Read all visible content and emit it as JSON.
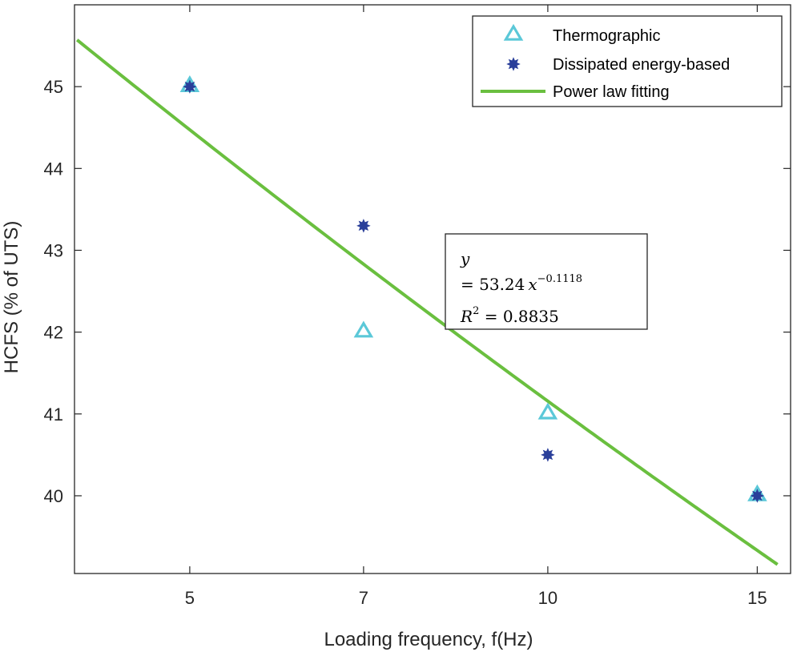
{
  "chart_data": {
    "type": "scatter",
    "title": "",
    "xlabel": "Loading frequency, f(Hz)",
    "ylabel": "HCFS (% of UTS)",
    "xlim": [
      4,
      16
    ],
    "ylim": [
      39.05,
      46
    ],
    "x_scale": "log",
    "xticks": [
      5,
      7,
      10,
      15
    ],
    "yticks": [
      40,
      41,
      42,
      43,
      44,
      45
    ],
    "grid": false,
    "legend_position": "top-right",
    "series": [
      {
        "name": "Thermographic",
        "marker": "triangle",
        "color": "#5bc8d8",
        "points": [
          {
            "x": 5,
            "y": 45.0
          },
          {
            "x": 7,
            "y": 42.0
          },
          {
            "x": 10,
            "y": 41.0
          },
          {
            "x": 15,
            "y": 40.0
          }
        ]
      },
      {
        "name": "Dissipated energy-based",
        "marker": "star",
        "color": "#2a3f9a",
        "points": [
          {
            "x": 5,
            "y": 45.0
          },
          {
            "x": 7,
            "y": 43.3
          },
          {
            "x": 10,
            "y": 40.5
          },
          {
            "x": 15,
            "y": 40.0
          }
        ]
      },
      {
        "name": "Power law fitting",
        "type": "line",
        "color": "#6abf3f",
        "equation": {
          "a": 53.24,
          "b": -0.1118
        },
        "x_range": [
          4.02,
          15.6
        ]
      }
    ],
    "annotation": {
      "line1": "y",
      "line2_prefix": "= 53.24",
      "line2_var": "x",
      "line2_sup": "−0.1118",
      "line3_prefix": "R",
      "line3_sup": "2",
      "line3_suffix": " = 0.8835"
    }
  }
}
